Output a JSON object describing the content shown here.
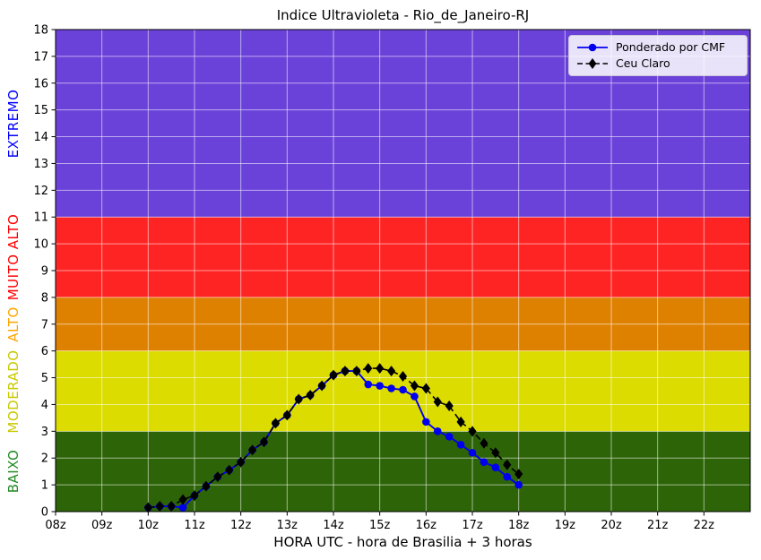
{
  "title": "Indice Ultravioleta - Rio_de_Janeiro-RJ",
  "legend": {
    "position": "upper right",
    "items": [
      {
        "label": "Ponderado por CMF",
        "color": "#0000ee",
        "marker": "circle",
        "linestyle": "solid"
      },
      {
        "label": "Ceu Claro",
        "color": "#000000",
        "marker": "diamond",
        "linestyle": "dashed"
      }
    ]
  },
  "chart_data": {
    "type": "line",
    "title": "Indice Ultravioleta - Rio_de_Janeiro-RJ",
    "xlabel": "HORA UTC - hora de Brasilia + 3 horas",
    "ylabel": "",
    "xlim": [
      8,
      23
    ],
    "ylim": [
      0,
      18
    ],
    "grid": true,
    "grid_color": "rgba(255,255,255,0.55)",
    "yticks": [
      0,
      1,
      2,
      3,
      4,
      5,
      6,
      7,
      8,
      9,
      10,
      11,
      12,
      13,
      14,
      15,
      16,
      17,
      18
    ],
    "xticks": [
      {
        "label": "08z",
        "hour": 8
      },
      {
        "label": "09z",
        "hour": 9
      },
      {
        "label": "10z",
        "hour": 10
      },
      {
        "label": "11z",
        "hour": 11
      },
      {
        "label": "12z",
        "hour": 12
      },
      {
        "label": "13z",
        "hour": 13
      },
      {
        "label": "14z",
        "hour": 14
      },
      {
        "label": "15z",
        "hour": 15
      },
      {
        "label": "16z",
        "hour": 16
      },
      {
        "label": "17z",
        "hour": 17
      },
      {
        "label": "18z",
        "hour": 18
      },
      {
        "label": "19z",
        "hour": 19
      },
      {
        "label": "20z",
        "hour": 20
      },
      {
        "label": "21z",
        "hour": 21
      },
      {
        "label": "22z",
        "hour": 22
      }
    ],
    "bands": [
      {
        "label": "BAIXO",
        "range": [
          0,
          3
        ],
        "color": "#2d6408",
        "label_color": "#228b22"
      },
      {
        "label": "MODERADO",
        "range": [
          3,
          6
        ],
        "color": "#dcdc00",
        "label_color": "#c8c800"
      },
      {
        "label": "ALTO",
        "range": [
          6,
          8
        ],
        "color": "#df8100",
        "label_color": "#ffa500"
      },
      {
        "label": "MUITO ALTO",
        "range": [
          8,
          11
        ],
        "color": "#ff2424",
        "label_color": "#ff0000"
      },
      {
        "label": "EXTREMO",
        "range": [
          11,
          18
        ],
        "color": "#6b42d9",
        "label_color": "#0000ff"
      }
    ],
    "x": [
      10,
      10.25,
      10.5,
      10.75,
      11,
      11.25,
      11.5,
      11.75,
      12,
      12.25,
      12.5,
      12.75,
      13,
      13.25,
      13.5,
      13.75,
      14,
      14.25,
      14.5,
      14.75,
      15,
      15.25,
      15.5,
      15.75,
      16,
      16.25,
      16.5,
      16.75,
      17,
      17.25,
      17.5,
      17.75,
      18
    ],
    "series": [
      {
        "name": "Ponderado por CMF",
        "color": "#0000ee",
        "marker": "circle",
        "linestyle": "solid",
        "values": [
          0.15,
          0.2,
          0.2,
          0.15,
          0.6,
          0.95,
          1.3,
          1.55,
          1.85,
          2.3,
          2.6,
          3.3,
          3.6,
          4.2,
          4.35,
          4.7,
          5.1,
          5.25,
          5.25,
          4.75,
          4.7,
          4.6,
          4.55,
          4.3,
          3.35,
          3.0,
          2.8,
          2.5,
          2.2,
          1.85,
          1.65,
          1.3,
          1.0
        ]
      },
      {
        "name": "Ceu Claro",
        "color": "#000000",
        "marker": "diamond",
        "linestyle": "dashed",
        "values": [
          0.15,
          0.2,
          0.2,
          0.45,
          0.6,
          0.95,
          1.3,
          1.55,
          1.85,
          2.3,
          2.6,
          3.3,
          3.6,
          4.2,
          4.35,
          4.7,
          5.1,
          5.25,
          5.25,
          5.35,
          5.35,
          5.25,
          5.05,
          4.7,
          4.6,
          4.1,
          3.95,
          3.35,
          3.0,
          2.55,
          2.2,
          1.75,
          1.4
        ]
      }
    ]
  }
}
